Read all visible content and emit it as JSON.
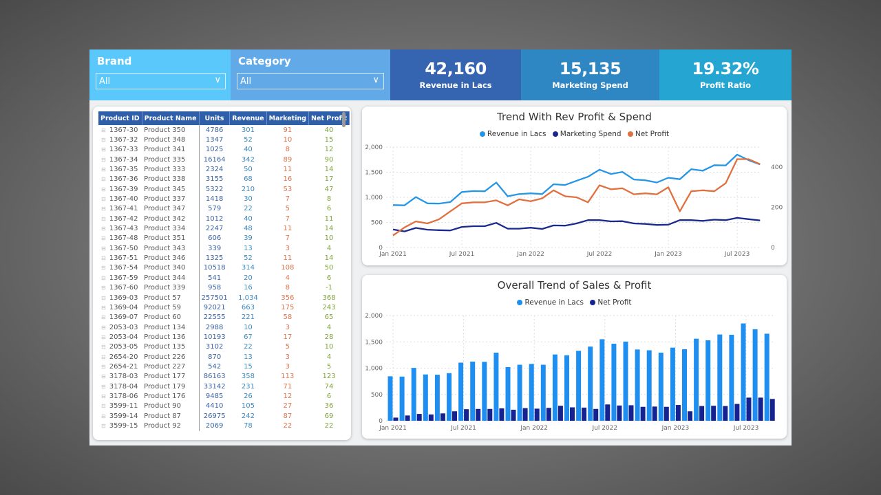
{
  "slicers": [
    {
      "label": "Brand",
      "value": "All"
    },
    {
      "label": "Category",
      "value": "All"
    }
  ],
  "kpis": [
    {
      "value": "42,160",
      "label": "Revenue in Lacs"
    },
    {
      "value": "15,135",
      "label": "Marketing Spend"
    },
    {
      "value": "19.32%",
      "label": "Profit Ratio"
    }
  ],
  "colors": {
    "revenue": "#2596e6",
    "marketing": "#1a2a8c",
    "profit": "#e07040",
    "bar_revenue": "#1e8ff0",
    "bar_profit": "#14238f",
    "header": "#2f5fa8"
  },
  "table": {
    "columns": [
      "Product ID",
      "Product Name",
      "Units",
      "Revenue",
      "Marketing",
      "Net Profit"
    ],
    "rows": [
      [
        "1367-30",
        "Product 350",
        "4786",
        "301",
        "91",
        "40"
      ],
      [
        "1367-32",
        "Product 348",
        "1347",
        "52",
        "10",
        "15"
      ],
      [
        "1367-33",
        "Product 341",
        "1025",
        "40",
        "8",
        "12"
      ],
      [
        "1367-34",
        "Product 335",
        "16164",
        "342",
        "89",
        "90"
      ],
      [
        "1367-35",
        "Product 333",
        "2324",
        "50",
        "11",
        "14"
      ],
      [
        "1367-36",
        "Product 338",
        "3155",
        "68",
        "16",
        "17"
      ],
      [
        "1367-39",
        "Product 345",
        "5322",
        "210",
        "53",
        "47"
      ],
      [
        "1367-40",
        "Product 337",
        "1418",
        "30",
        "7",
        "8"
      ],
      [
        "1367-41",
        "Product 347",
        "579",
        "22",
        "5",
        "6"
      ],
      [
        "1367-42",
        "Product 342",
        "1012",
        "40",
        "7",
        "11"
      ],
      [
        "1367-43",
        "Product 334",
        "2247",
        "48",
        "11",
        "14"
      ],
      [
        "1367-48",
        "Product 351",
        "606",
        "39",
        "7",
        "10"
      ],
      [
        "1367-50",
        "Product 343",
        "339",
        "13",
        "3",
        "4"
      ],
      [
        "1367-51",
        "Product 346",
        "1325",
        "52",
        "11",
        "14"
      ],
      [
        "1367-54",
        "Product 340",
        "10518",
        "314",
        "108",
        "50"
      ],
      [
        "1367-59",
        "Product 344",
        "541",
        "20",
        "4",
        "6"
      ],
      [
        "1367-60",
        "Product 339",
        "958",
        "16",
        "8",
        "-1"
      ],
      [
        "1369-03",
        "Product 57",
        "257501",
        "1,034",
        "356",
        "368"
      ],
      [
        "1369-04",
        "Product 59",
        "92021",
        "663",
        "175",
        "243"
      ],
      [
        "1369-07",
        "Product 60",
        "22555",
        "221",
        "58",
        "65"
      ],
      [
        "2053-03",
        "Product 134",
        "2988",
        "10",
        "3",
        "4"
      ],
      [
        "2053-04",
        "Product 136",
        "10193",
        "67",
        "17",
        "28"
      ],
      [
        "2053-05",
        "Product 135",
        "3102",
        "22",
        "5",
        "10"
      ],
      [
        "2654-20",
        "Product 226",
        "870",
        "13",
        "3",
        "4"
      ],
      [
        "2654-21",
        "Product 227",
        "542",
        "15",
        "3",
        "5"
      ],
      [
        "3178-03",
        "Product 177",
        "86163",
        "358",
        "113",
        "123"
      ],
      [
        "3178-04",
        "Product 179",
        "33142",
        "231",
        "71",
        "74"
      ],
      [
        "3178-06",
        "Product 176",
        "9485",
        "26",
        "12",
        "6"
      ],
      [
        "3599-11",
        "Product 90",
        "4410",
        "105",
        "27",
        "36"
      ],
      [
        "3599-14",
        "Product 87",
        "26975",
        "242",
        "87",
        "69"
      ],
      [
        "3599-15",
        "Product 92",
        "2069",
        "78",
        "22",
        "22"
      ]
    ]
  },
  "chart_data": [
    {
      "type": "line",
      "title": "Trend With Rev Profit & Spend",
      "x": [
        "2021-01",
        "2021-02",
        "2021-03",
        "2021-04",
        "2021-05",
        "2021-06",
        "2021-07",
        "2021-08",
        "2021-09",
        "2021-10",
        "2021-11",
        "2021-12",
        "2022-01",
        "2022-02",
        "2022-03",
        "2022-04",
        "2022-05",
        "2022-06",
        "2022-07",
        "2022-08",
        "2022-09",
        "2022-10",
        "2022-11",
        "2022-12",
        "2023-01",
        "2023-02",
        "2023-03",
        "2023-04",
        "2023-05",
        "2023-06",
        "2023-07",
        "2023-08",
        "2023-09"
      ],
      "x_ticks": [
        "Jan 2021",
        "Jul 2021",
        "Jan 2022",
        "Jul 2022",
        "Jan 2023",
        "Jul 2023"
      ],
      "y_ticks": [
        "0",
        "500",
        "1,000",
        "1,500",
        "2,000"
      ],
      "ylim": [
        0,
        2000
      ],
      "y2_ticks": [
        "0",
        "200",
        "400"
      ],
      "y2lim": [
        0,
        500
      ],
      "legend_position": "top-center",
      "grid": true,
      "series": [
        {
          "name": "Revenue in Lacs",
          "axis": "left",
          "values": [
            845,
            840,
            1005,
            880,
            875,
            905,
            1105,
            1125,
            1120,
            1295,
            1020,
            1065,
            1080,
            1065,
            1260,
            1245,
            1330,
            1410,
            1550,
            1465,
            1505,
            1355,
            1340,
            1295,
            1390,
            1360,
            1560,
            1530,
            1640,
            1635,
            1850,
            1740,
            1655
          ]
        },
        {
          "name": "Marketing Spend",
          "axis": "left",
          "values": [
            360,
            320,
            390,
            355,
            345,
            340,
            410,
            425,
            425,
            490,
            375,
            375,
            395,
            370,
            440,
            435,
            480,
            545,
            545,
            520,
            525,
            480,
            470,
            450,
            455,
            545,
            545,
            530,
            555,
            545,
            590,
            565,
            540
          ]
        },
        {
          "name": "Net Profit",
          "axis": "right",
          "values": [
            60,
            100,
            130,
            120,
            140,
            180,
            220,
            225,
            225,
            235,
            210,
            240,
            230,
            245,
            285,
            255,
            250,
            225,
            310,
            290,
            295,
            265,
            270,
            265,
            300,
            180,
            280,
            285,
            280,
            320,
            440,
            440,
            415
          ]
        }
      ]
    },
    {
      "type": "bar",
      "title": "Overall Trend of Sales & Profit",
      "x_ticks": [
        "Jan 2021",
        "Jul 2021",
        "Jan 2022",
        "Jul 2022",
        "Jan 2023",
        "Jul 2023"
      ],
      "y_ticks": [
        "0",
        "500",
        "1,000",
        "1,500",
        "2,000"
      ],
      "ylim": [
        0,
        2000
      ],
      "legend_position": "top-center",
      "grid": true,
      "series": [
        {
          "name": "Revenue in Lacs",
          "values": [
            845,
            840,
            1005,
            880,
            875,
            905,
            1105,
            1125,
            1120,
            1295,
            1020,
            1065,
            1080,
            1065,
            1260,
            1245,
            1330,
            1410,
            1550,
            1465,
            1505,
            1355,
            1340,
            1295,
            1390,
            1360,
            1560,
            1530,
            1640,
            1635,
            1850,
            1740,
            1655
          ]
        },
        {
          "name": "Net Profit",
          "values": [
            60,
            100,
            130,
            120,
            140,
            180,
            220,
            225,
            225,
            235,
            210,
            240,
            230,
            245,
            285,
            255,
            250,
            225,
            310,
            290,
            295,
            265,
            270,
            265,
            300,
            180,
            280,
            285,
            280,
            320,
            440,
            440,
            415
          ]
        }
      ]
    }
  ]
}
